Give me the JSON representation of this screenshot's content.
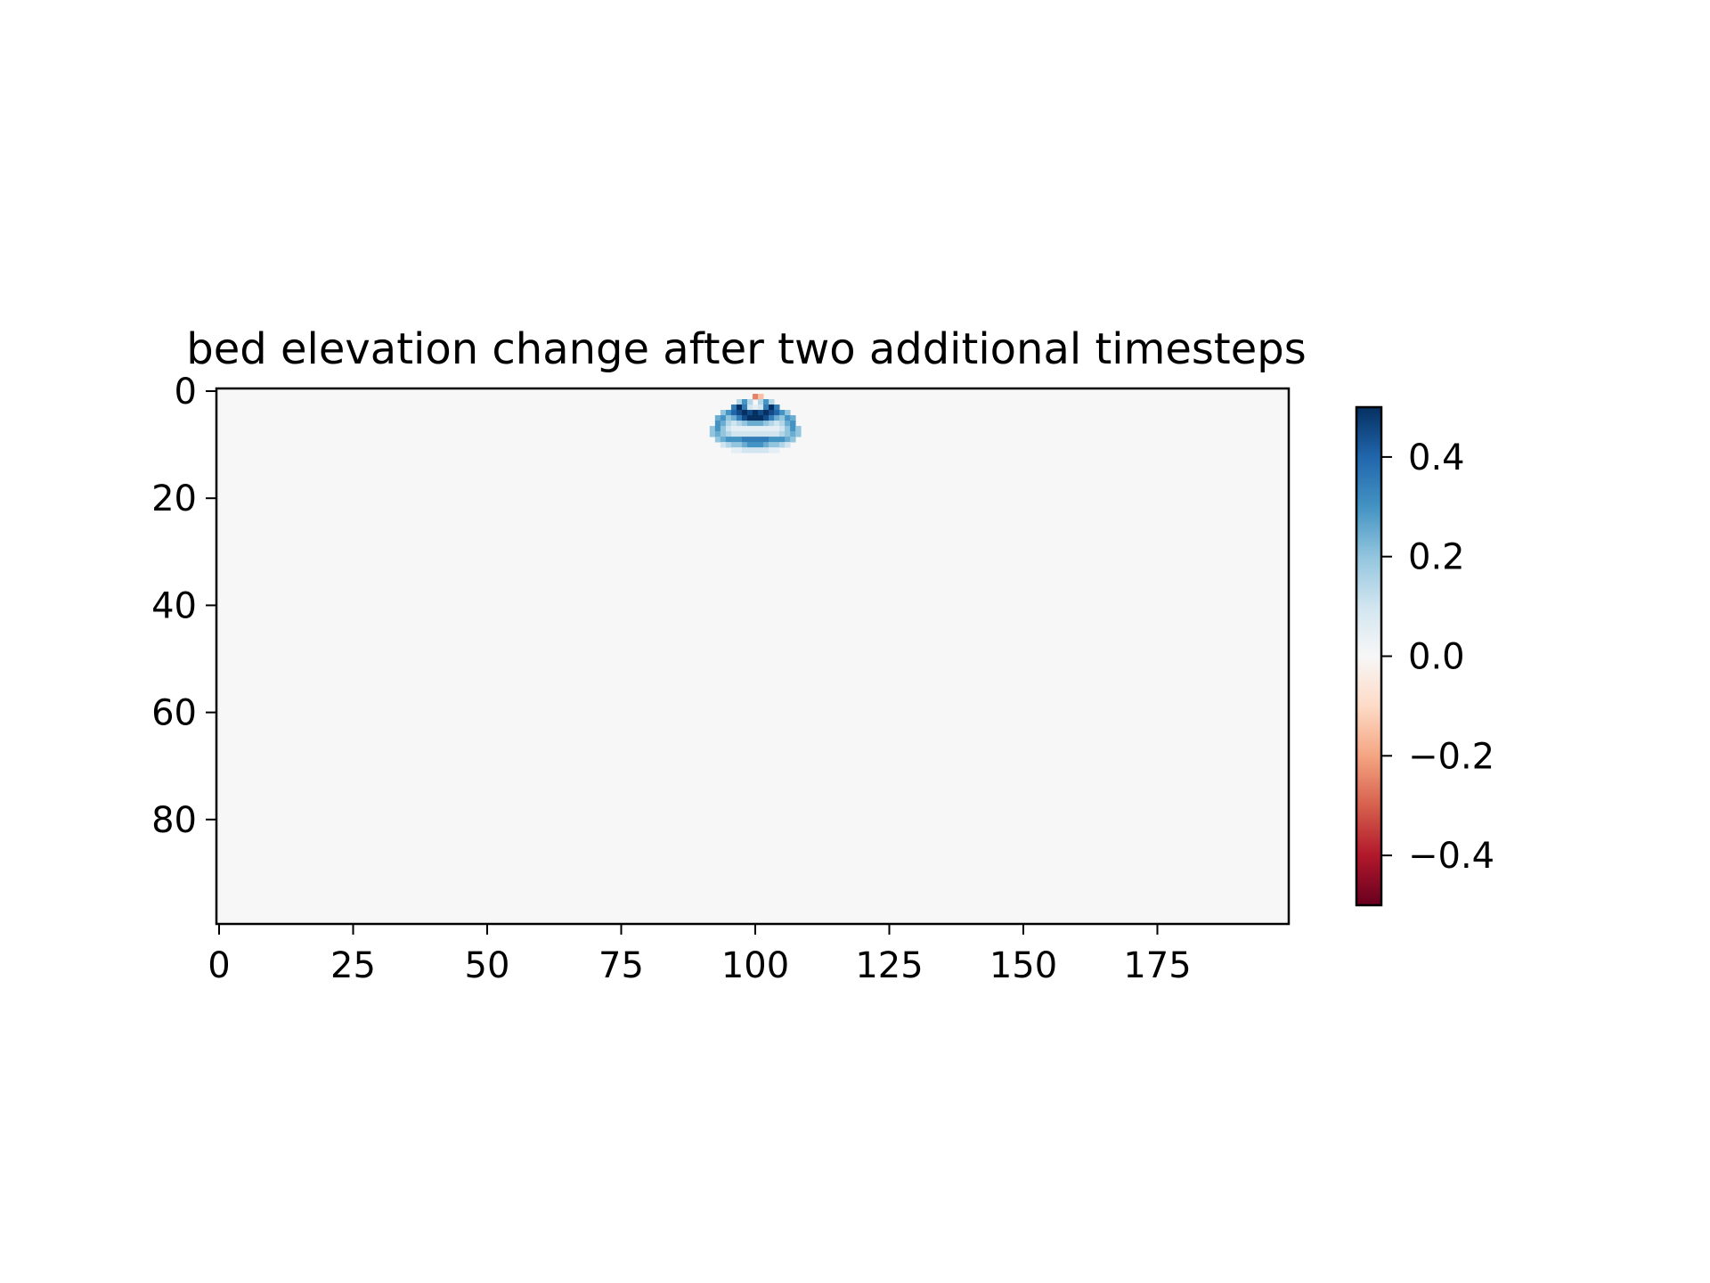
{
  "chart_data": {
    "type": "heatmap",
    "title": "bed elevation change after two additional timesteps",
    "xlabel": "",
    "ylabel": "",
    "grid_shape": [
      100,
      200
    ],
    "xlim": [
      -0.5,
      199.5
    ],
    "ylim": [
      99.5,
      -0.5
    ],
    "x_ticks": [
      0,
      25,
      50,
      75,
      100,
      125,
      150,
      175
    ],
    "x_tick_labels": [
      "0",
      "25",
      "50",
      "75",
      "100",
      "125",
      "150",
      "175"
    ],
    "y_ticks": [
      0,
      20,
      40,
      60,
      80
    ],
    "y_tick_labels": [
      "0",
      "20",
      "40",
      "60",
      "80"
    ],
    "colormap": "RdBu",
    "colormap_stops": [
      "#67001f",
      "#b2182b",
      "#d6604d",
      "#f4a582",
      "#fddbc7",
      "#f7f7f7",
      "#d1e5f0",
      "#92c5de",
      "#4393c3",
      "#2166ac",
      "#053061"
    ],
    "background_value": 0.0,
    "vmin": -0.5,
    "vmax": 0.5,
    "colorbar": {
      "ticks": [
        0.4,
        0.2,
        0.0,
        -0.2,
        -0.4
      ],
      "tick_labels": [
        "0.4",
        "0.2",
        "0.0",
        "−0.2",
        "−0.4"
      ],
      "placement": "right"
    },
    "cells": [
      [
        1,
        100,
        -0.25
      ],
      [
        1,
        101,
        -0.15
      ],
      [
        2,
        97,
        0.15
      ],
      [
        2,
        98,
        0.3
      ],
      [
        2,
        99,
        0.15
      ],
      [
        2,
        101,
        0.15
      ],
      [
        2,
        102,
        0.3
      ],
      [
        2,
        103,
        0.15
      ],
      [
        3,
        96,
        0.35
      ],
      [
        3,
        97,
        0.5
      ],
      [
        3,
        98,
        0.35
      ],
      [
        3,
        99,
        0.1
      ],
      [
        3,
        100,
        0.05
      ],
      [
        3,
        101,
        0.1
      ],
      [
        3,
        102,
        0.35
      ],
      [
        3,
        103,
        0.5
      ],
      [
        3,
        104,
        0.35
      ],
      [
        4,
        94,
        0.2
      ],
      [
        4,
        95,
        0.3
      ],
      [
        4,
        96,
        0.4
      ],
      [
        4,
        97,
        0.45
      ],
      [
        4,
        98,
        0.5
      ],
      [
        4,
        99,
        0.45
      ],
      [
        4,
        100,
        0.5
      ],
      [
        4,
        101,
        0.45
      ],
      [
        4,
        102,
        0.5
      ],
      [
        4,
        103,
        0.45
      ],
      [
        4,
        104,
        0.4
      ],
      [
        4,
        105,
        0.3
      ],
      [
        4,
        106,
        0.2
      ],
      [
        5,
        93,
        0.25
      ],
      [
        5,
        94,
        0.3
      ],
      [
        5,
        95,
        0.2
      ],
      [
        5,
        96,
        0.25
      ],
      [
        5,
        97,
        0.35
      ],
      [
        5,
        98,
        0.45
      ],
      [
        5,
        99,
        0.5
      ],
      [
        5,
        100,
        0.5
      ],
      [
        5,
        101,
        0.5
      ],
      [
        5,
        102,
        0.45
      ],
      [
        5,
        103,
        0.35
      ],
      [
        5,
        104,
        0.25
      ],
      [
        5,
        105,
        0.2
      ],
      [
        5,
        106,
        0.3
      ],
      [
        5,
        107,
        0.25
      ],
      [
        6,
        93,
        0.3
      ],
      [
        6,
        94,
        0.25
      ],
      [
        6,
        95,
        0.15
      ],
      [
        6,
        96,
        0.1
      ],
      [
        6,
        97,
        0.15
      ],
      [
        6,
        98,
        0.2
      ],
      [
        6,
        99,
        0.25
      ],
      [
        6,
        100,
        0.25
      ],
      [
        6,
        101,
        0.25
      ],
      [
        6,
        102,
        0.2
      ],
      [
        6,
        103,
        0.15
      ],
      [
        6,
        104,
        0.1
      ],
      [
        6,
        105,
        0.15
      ],
      [
        6,
        106,
        0.25
      ],
      [
        6,
        107,
        0.3
      ],
      [
        7,
        92,
        0.2
      ],
      [
        7,
        93,
        0.3
      ],
      [
        7,
        94,
        0.2
      ],
      [
        7,
        95,
        0.1
      ],
      [
        7,
        96,
        0.05
      ],
      [
        7,
        97,
        0.05
      ],
      [
        7,
        98,
        0.05
      ],
      [
        7,
        99,
        0.05
      ],
      [
        7,
        100,
        0.05
      ],
      [
        7,
        101,
        0.05
      ],
      [
        7,
        102,
        0.05
      ],
      [
        7,
        103,
        0.05
      ],
      [
        7,
        104,
        0.05
      ],
      [
        7,
        105,
        0.1
      ],
      [
        7,
        106,
        0.2
      ],
      [
        7,
        107,
        0.3
      ],
      [
        7,
        108,
        0.2
      ],
      [
        8,
        92,
        0.2
      ],
      [
        8,
        93,
        0.25
      ],
      [
        8,
        94,
        0.2
      ],
      [
        8,
        95,
        0.15
      ],
      [
        8,
        96,
        0.1
      ],
      [
        8,
        97,
        0.1
      ],
      [
        8,
        98,
        0.1
      ],
      [
        8,
        99,
        0.1
      ],
      [
        8,
        100,
        0.1
      ],
      [
        8,
        101,
        0.1
      ],
      [
        8,
        102,
        0.1
      ],
      [
        8,
        103,
        0.1
      ],
      [
        8,
        104,
        0.1
      ],
      [
        8,
        105,
        0.15
      ],
      [
        8,
        106,
        0.2
      ],
      [
        8,
        107,
        0.25
      ],
      [
        8,
        108,
        0.2
      ],
      [
        9,
        93,
        0.2
      ],
      [
        9,
        94,
        0.25
      ],
      [
        9,
        95,
        0.3
      ],
      [
        9,
        96,
        0.3
      ],
      [
        9,
        97,
        0.3
      ],
      [
        9,
        98,
        0.35
      ],
      [
        9,
        99,
        0.35
      ],
      [
        9,
        100,
        0.35
      ],
      [
        9,
        101,
        0.35
      ],
      [
        9,
        102,
        0.35
      ],
      [
        9,
        103,
        0.3
      ],
      [
        9,
        104,
        0.3
      ],
      [
        9,
        105,
        0.3
      ],
      [
        9,
        106,
        0.25
      ],
      [
        9,
        107,
        0.2
      ],
      [
        10,
        94,
        0.1
      ],
      [
        10,
        95,
        0.15
      ],
      [
        10,
        96,
        0.2
      ],
      [
        10,
        97,
        0.2
      ],
      [
        10,
        98,
        0.25
      ],
      [
        10,
        99,
        0.3
      ],
      [
        10,
        100,
        0.3
      ],
      [
        10,
        101,
        0.3
      ],
      [
        10,
        102,
        0.25
      ],
      [
        10,
        103,
        0.2
      ],
      [
        10,
        104,
        0.2
      ],
      [
        10,
        105,
        0.15
      ],
      [
        10,
        106,
        0.1
      ],
      [
        11,
        96,
        0.05
      ],
      [
        11,
        97,
        0.05
      ],
      [
        11,
        98,
        0.1
      ],
      [
        11,
        99,
        0.1
      ],
      [
        11,
        100,
        0.1
      ],
      [
        11,
        101,
        0.1
      ],
      [
        11,
        102,
        0.1
      ],
      [
        11,
        103,
        0.05
      ],
      [
        11,
        104,
        0.05
      ]
    ]
  }
}
